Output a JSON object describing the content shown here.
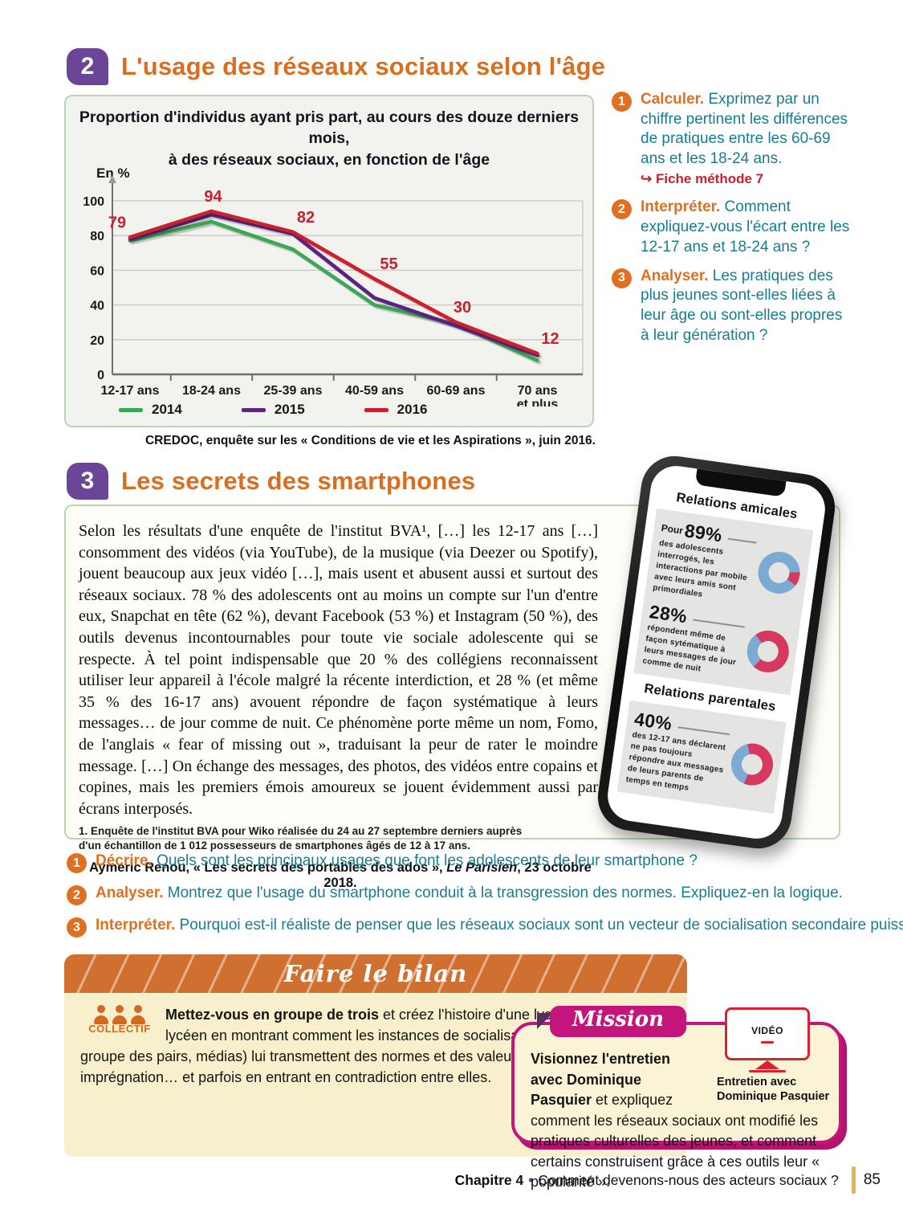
{
  "section2": {
    "badge": "2",
    "title": "L'usage des réseaux sociaux selon l'âge",
    "source": "CREDOC, enquête sur les « Conditions de vie et les Aspirations », juin 2016.",
    "questions": [
      {
        "num": "1",
        "verb": "Calculer.",
        "text": "Exprimez par un chiffre pertinent les différences de pratiques entre les 60-69 ans et les 18-24 ans.",
        "method_arrow": "↪",
        "method": "Fiche méthode 7"
      },
      {
        "num": "2",
        "verb": "Interpréter.",
        "text": "Comment expliquez-vous l'écart entre les 12-17 ans et 18-24 ans ?"
      },
      {
        "num": "3",
        "verb": "Analyser.",
        "text": "Les pratiques des plus jeunes sont-elles liées à leur âge ou sont-elles propres à leur génération ?"
      }
    ]
  },
  "chart_data": {
    "type": "line",
    "title": "Proportion d'individus ayant pris part, au cours des douze derniers mois, à des réseaux sociaux, en fonction de l'âge",
    "title_lines": [
      "Proportion d'individus ayant pris part, au cours des douze derniers mois,",
      "à des réseaux sociaux, en fonction de l'âge"
    ],
    "ylabel": "En %",
    "ylim": [
      0,
      100
    ],
    "yticks": [
      0,
      20,
      40,
      60,
      80,
      100
    ],
    "categories": [
      "12-17 ans",
      "18-24 ans",
      "25-39 ans",
      "40-59 ans",
      "60-69 ans",
      "70 ans|et plus"
    ],
    "series": [
      {
        "name": "2014",
        "color": "#3aa655",
        "values": [
          77,
          88,
          72,
          40,
          29,
          8
        ]
      },
      {
        "name": "2015",
        "color": "#5c2483",
        "values": [
          78,
          92,
          81,
          44,
          28,
          11
        ]
      },
      {
        "name": "2016",
        "color": "#c9202e",
        "values": [
          79,
          94,
          82,
          55,
          30,
          12
        ],
        "point_labels": [
          79,
          94,
          82,
          55,
          30,
          12
        ]
      }
    ],
    "grid": true,
    "legend_position": "bottom",
    "source": "CREDOC, enquête sur les « Conditions de vie et les Aspirations », juin 2016."
  },
  "section3": {
    "badge": "3",
    "title": "Les secrets des smartphones",
    "paragraph": "Selon les résultats d'une enquête de l'institut BVA¹, […] les 12-17 ans […] consomment des vidéos (via YouTube), de la musique (via Deezer ou Spotify), jouent beaucoup aux jeux vidéo […], mais usent et abusent aussi et surtout des réseaux sociaux. 78 % des adolescents ont au moins un compte sur l'un d'entre eux, Snapchat en tête (62 %), devant Facebook (53 %) et Instagram (50 %), des outils devenus incontournables pour toute vie sociale adolescente qui se respecte. À tel point indispensable que 20 % des collégiens reconnaissent utiliser leur appareil à l'école malgré la récente interdiction, et 28 % (et même 35 % des 16-17 ans) avouent répondre de façon systématique à leurs messages… de jour comme de nuit. Ce phénomène porte même un nom, Fomo, de l'anglais « fear of missing out », traduisant la peur de rater le moindre message. […] On échange des messages, des photos, des vidéos entre copains et copines, mais les premiers émois amoureux se jouent évidemment aussi par écrans interposés.",
    "footnote": "1. Enquête de l'institut BVA pour Wiko réalisée du 24 au 27 septembre derniers auprès d'un échantillon de 1 012 possesseurs de smartphones âgés de 12 à 17 ans.",
    "attribution": {
      "prefix": "Aymeric Renou, « Les secrets des portables des ados », ",
      "source": "Le Parisien",
      "suffix": ", 23 octobre 2018."
    },
    "questions": [
      {
        "num": "1",
        "verb": "Décrire.",
        "text": "Quels sont les principaux usages que font les adolescents de leur smartphone ?"
      },
      {
        "num": "2",
        "verb": "Analyser.",
        "text": "Montrez que l'usage du smartphone conduit à la transgression des normes. Expliquez-en la logique."
      },
      {
        "num": "3",
        "verb": "Interpréter.",
        "text": "Pourquoi est-il réaliste de penser que les réseaux sociaux sont un vecteur de socialisation secondaire puissant ?"
      }
    ]
  },
  "phone": {
    "donut_colors": {
      "blue": "#7babd4",
      "red": "#d63860"
    },
    "sections": [
      {
        "heading": "Relations amicales",
        "stats": [
          {
            "prefix": "Pour ",
            "value": "89%",
            "pct": 89,
            "from_deg": 120,
            "text": "des adolescents interrogés, les interactions par mobile avec leurs amis sont primordiales"
          },
          {
            "value": "28%",
            "pct": 28,
            "from_deg": 215,
            "text": "répondent même de façon sytématique à leurs messages de jour comme de nuit"
          }
        ]
      },
      {
        "heading": "Relations parentales",
        "stats": [
          {
            "value": "40%",
            "pct": 40,
            "from_deg": 195,
            "text": "des 12-17 ans déclarent ne pas toujours répondre aux messages de leurs parents de temps en temps"
          }
        ]
      }
    ]
  },
  "bilan": {
    "banner": "Faire le bilan",
    "collectif_label": "COLLECTIF",
    "bold_intro": "Mettez-vous en groupe de trois",
    "text": " et créez l'histoire d'une lycéenne ou d'un lycéen en montrant comment les instances de socialisation (famille, école, groupe des pairs, médias) lui transmettent des normes et des valeurs par inculcation et par imprégnation… et parfois en entrant en contradiction entre elles.",
    "mission": {
      "tab": "Mission",
      "bold_intro": "Visionnez l'entretien avec Dominique Pasquier",
      "text": " et expliquez comment les réseaux sociaux ont modifié les pratiques culturelles des jeunes, et comment certains construisent grâce à ces outils leur « popularité ».",
      "video_label": "VIDÉO",
      "video_caption": "Entretien avec Dominique Pasquier"
    }
  },
  "footer": {
    "chapter": "Chapitre 4",
    "separator": "•",
    "title": "Comment devenons-nous des acteurs sociaux ?",
    "page_number": "85"
  }
}
